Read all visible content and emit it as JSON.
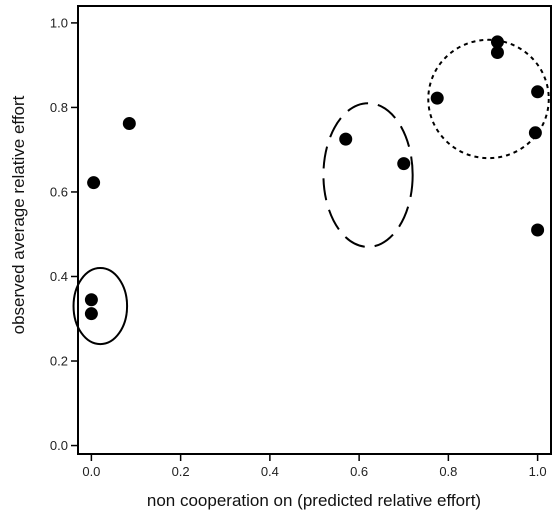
{
  "chart_data": {
    "type": "scatter",
    "title": "",
    "xlabel": "non cooperation on (predicted relative effort)",
    "ylabel": "observed average relative effort",
    "xlim": [
      -0.03,
      1.03
    ],
    "ylim": [
      -0.02,
      1.04
    ],
    "x_ticks": [
      0.0,
      0.2,
      0.4,
      0.6,
      0.8,
      1.0
    ],
    "x_tick_labels": [
      "0.0",
      "0.2",
      "0.4",
      "0.6",
      "0.8",
      "1.0"
    ],
    "y_ticks": [
      0.0,
      0.2,
      0.4,
      0.6,
      0.8,
      1.0
    ],
    "y_tick_labels": [
      "0.0",
      "0.2",
      "0.4",
      "0.6",
      "0.8",
      "1.0"
    ],
    "grid": false,
    "legend": "none",
    "marker_color": "#000000",
    "points": [
      {
        "x": 0.0,
        "y": 0.345
      },
      {
        "x": 0.0,
        "y": 0.312
      },
      {
        "x": 0.005,
        "y": 0.622
      },
      {
        "x": 0.085,
        "y": 0.762
      },
      {
        "x": 0.57,
        "y": 0.725
      },
      {
        "x": 0.7,
        "y": 0.667
      },
      {
        "x": 0.775,
        "y": 0.822
      },
      {
        "x": 0.91,
        "y": 0.955
      },
      {
        "x": 0.91,
        "y": 0.93
      },
      {
        "x": 0.995,
        "y": 0.74
      },
      {
        "x": 1.0,
        "y": 0.837
      },
      {
        "x": 1.0,
        "y": 0.51
      }
    ],
    "annotations": [
      {
        "shape": "ellipse",
        "style": "solid",
        "cx": 0.02,
        "cy": 0.33,
        "rx": 0.06,
        "ry": 0.09
      },
      {
        "shape": "ellipse",
        "style": "long-dash",
        "cx": 0.62,
        "cy": 0.64,
        "rx": 0.1,
        "ry": 0.17
      },
      {
        "shape": "ellipse",
        "style": "dotted",
        "cx": 0.89,
        "cy": 0.82,
        "rx": 0.135,
        "ry": 0.14
      }
    ]
  }
}
